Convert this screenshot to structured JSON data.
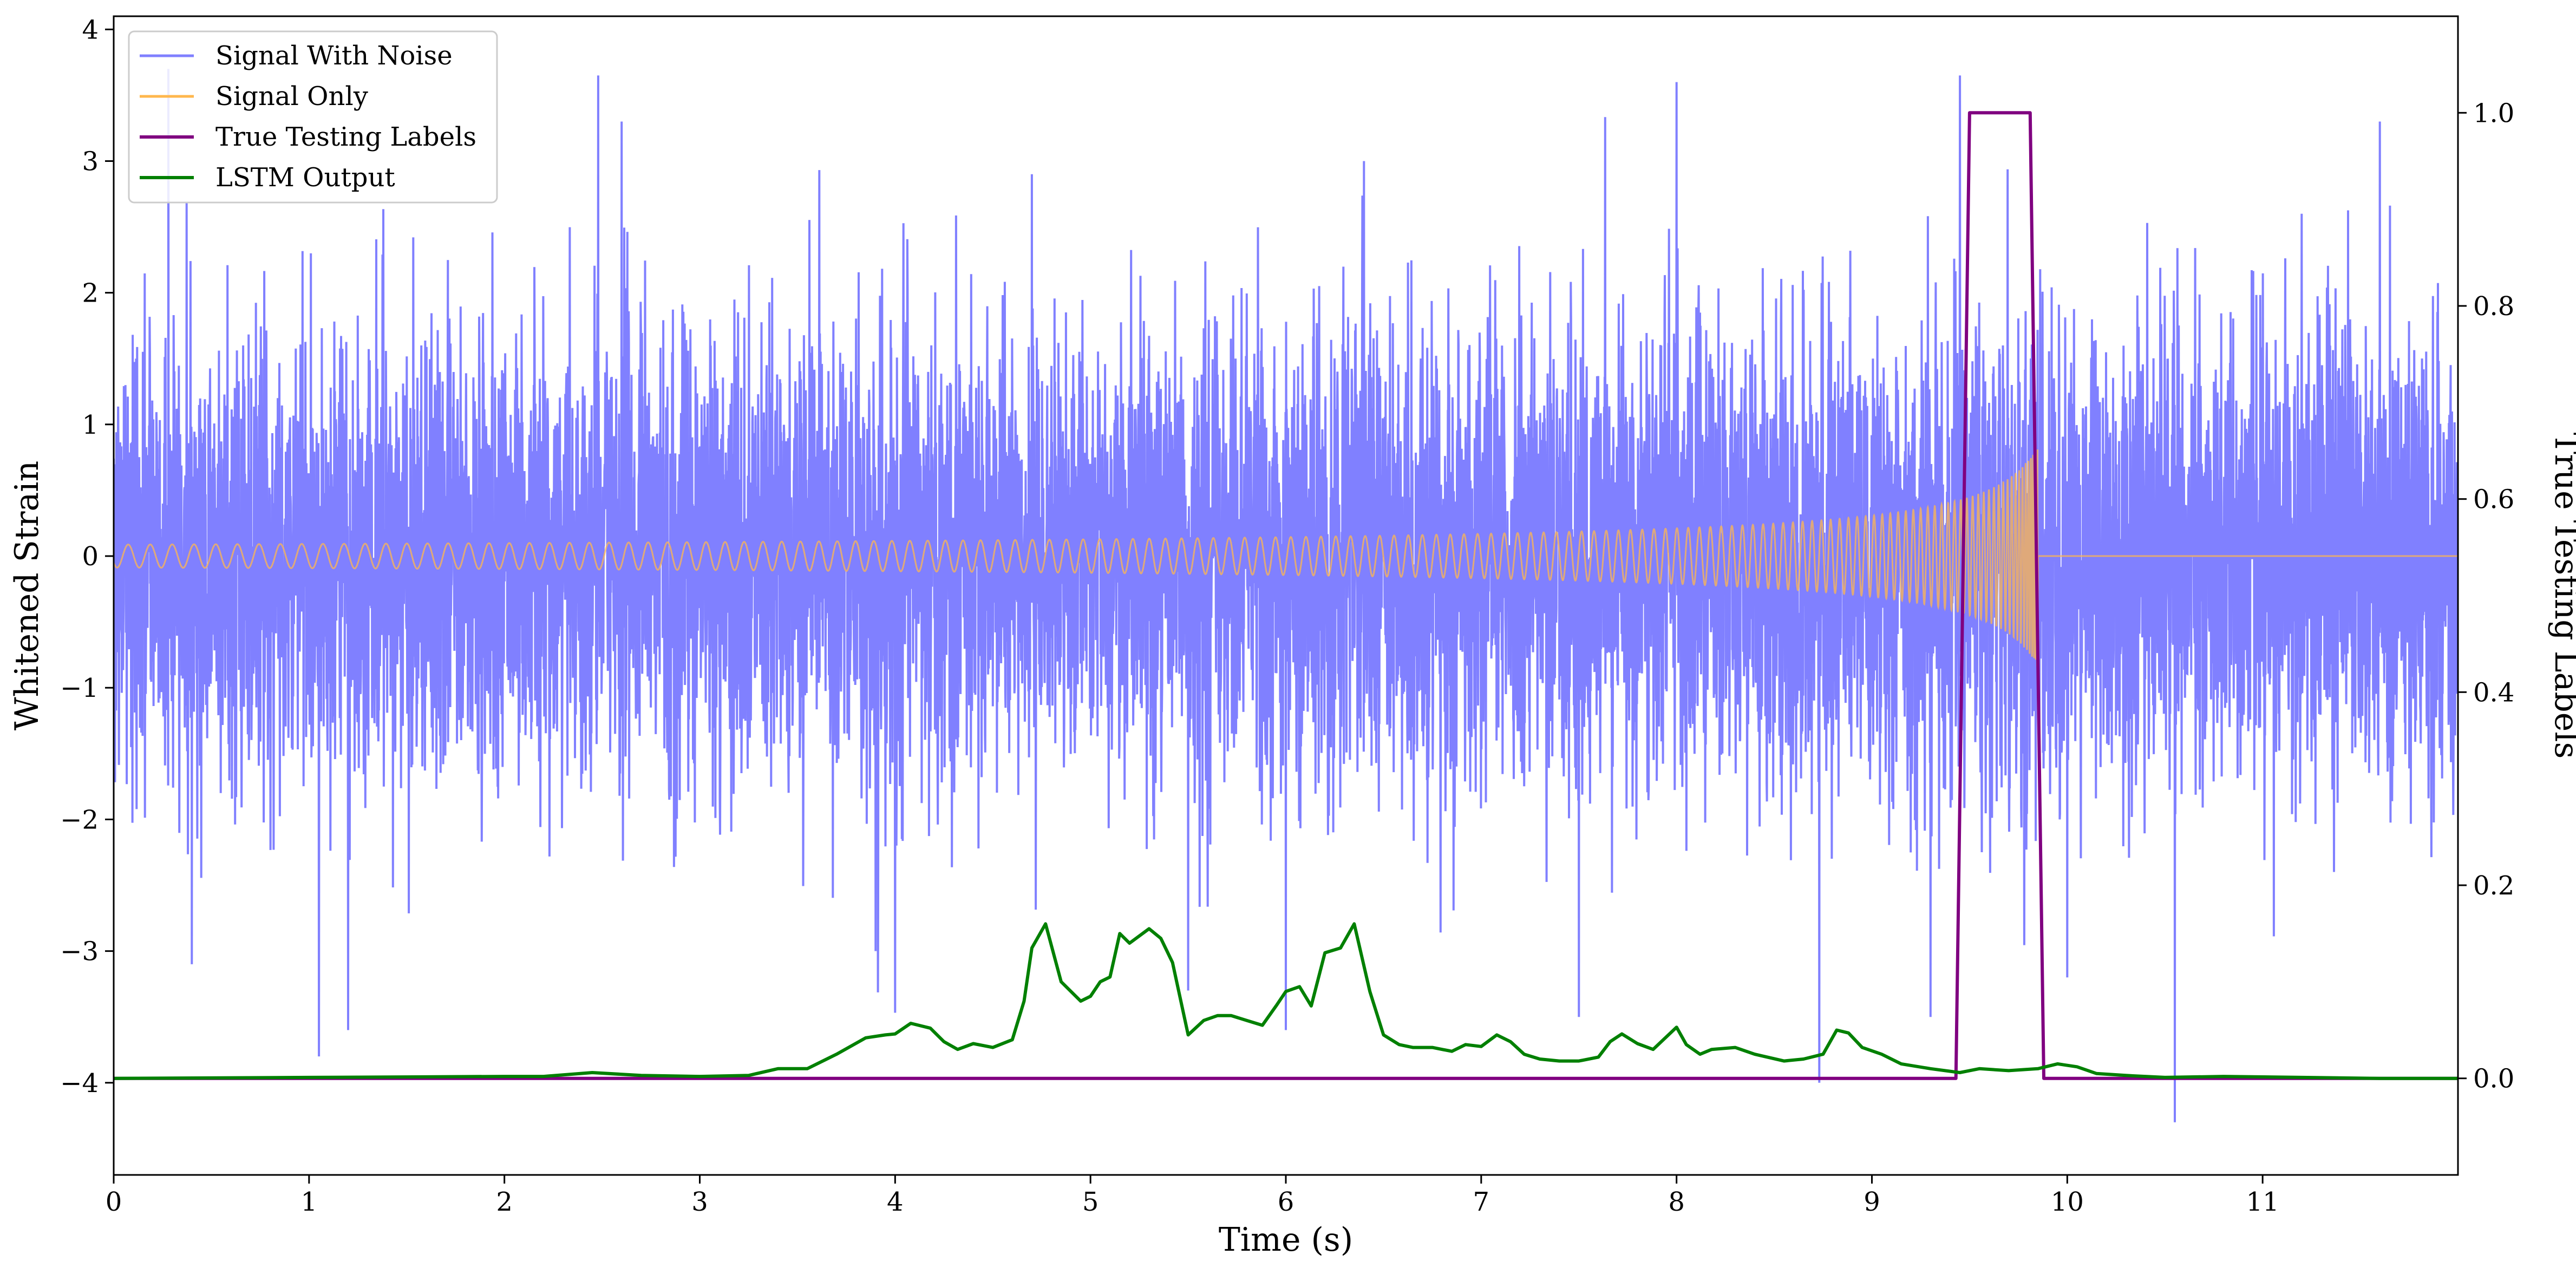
{
  "chart_data": {
    "type": "line",
    "title": "",
    "xlabel": "Time (s)",
    "ylabel": "Whitened Strain",
    "y2label": "True Testing Labels",
    "xlim": [
      0,
      12
    ],
    "ylim": [
      -4.7,
      4.1
    ],
    "y2lim": [
      -0.1,
      1.1
    ],
    "x_ticks": [
      0,
      1,
      2,
      3,
      4,
      5,
      6,
      7,
      8,
      9,
      10,
      11
    ],
    "y_ticks": [
      -4,
      -3,
      -2,
      -1,
      0,
      1,
      2,
      3,
      4
    ],
    "y2_ticks": [
      0.0,
      0.2,
      0.4,
      0.6,
      0.8,
      1.0
    ],
    "y2_tick_labels": [
      "0.0",
      "0.2",
      "0.4",
      "0.6",
      "0.8",
      "1.0"
    ],
    "legend_position": "upper-left",
    "grid": false,
    "series": [
      {
        "name": "Signal With Noise",
        "axis": "left",
        "color": "#8080ff",
        "description": "dense noisy strain, approx. standard deviation 1",
        "spike_peaks": {
          "x": [
            0.28,
            0.4,
            1.05,
            1.2,
            2.48,
            2.6,
            3.9,
            4.7,
            5.5,
            6.0,
            6.4,
            7.5,
            8.0,
            8.73,
            9.3,
            9.45,
            10.0,
            10.55,
            11.2,
            11.6
          ],
          "y": [
            3.7,
            -3.1,
            -3.8,
            -3.6,
            3.65,
            3.3,
            -3.0,
            2.9,
            -3.3,
            -3.6,
            3.0,
            -3.5,
            3.6,
            -4.0,
            -3.5,
            3.65,
            -3.2,
            -4.3,
            2.6,
            3.3
          ]
        }
      },
      {
        "name": "Signal Only",
        "axis": "left",
        "color": "#ffb74d",
        "description": "inspiral chirp growing in amplitude and frequency, ending near 9.85 s",
        "chirp_end": 9.85,
        "amplitude_max": 0.85
      },
      {
        "name": "True Testing Labels",
        "axis": "right",
        "color": "#800080",
        "x": [
          0,
          9.43,
          9.5,
          9.81,
          9.88,
          12
        ],
        "y": [
          0,
          0,
          1,
          1,
          0,
          0
        ]
      },
      {
        "name": "LSTM Output",
        "axis": "right",
        "color": "#008000",
        "x": [
          0,
          1.0,
          2.0,
          2.2,
          2.45,
          2.7,
          3.0,
          3.25,
          3.4,
          3.55,
          3.7,
          3.85,
          3.95,
          4.0,
          4.08,
          4.18,
          4.25,
          4.32,
          4.4,
          4.5,
          4.6,
          4.66,
          4.7,
          4.77,
          4.85,
          4.95,
          5.0,
          5.05,
          5.1,
          5.15,
          5.2,
          5.3,
          5.36,
          5.42,
          5.5,
          5.58,
          5.65,
          5.72,
          5.8,
          5.88,
          5.95,
          6.0,
          6.07,
          6.13,
          6.2,
          6.28,
          6.35,
          6.43,
          6.5,
          6.58,
          6.65,
          6.75,
          6.85,
          6.92,
          7.0,
          7.08,
          7.15,
          7.22,
          7.3,
          7.4,
          7.5,
          7.6,
          7.66,
          7.72,
          7.8,
          7.88,
          8.0,
          8.05,
          8.12,
          8.18,
          8.3,
          8.4,
          8.55,
          8.65,
          8.75,
          8.82,
          8.88,
          8.95,
          9.05,
          9.15,
          9.3,
          9.45,
          9.55,
          9.7,
          9.85,
          9.95,
          10.05,
          10.15,
          10.3,
          10.5,
          10.8,
          11.2,
          11.6,
          12.0
        ],
        "y": [
          0.0,
          0.001,
          0.002,
          0.002,
          0.006,
          0.003,
          0.002,
          0.003,
          0.01,
          0.01,
          0.025,
          0.042,
          0.045,
          0.046,
          0.057,
          0.052,
          0.038,
          0.03,
          0.036,
          0.032,
          0.04,
          0.08,
          0.135,
          0.16,
          0.1,
          0.08,
          0.085,
          0.1,
          0.105,
          0.15,
          0.14,
          0.155,
          0.145,
          0.12,
          0.045,
          0.06,
          0.065,
          0.065,
          0.06,
          0.055,
          0.075,
          0.09,
          0.095,
          0.075,
          0.13,
          0.135,
          0.16,
          0.09,
          0.045,
          0.035,
          0.032,
          0.032,
          0.028,
          0.035,
          0.033,
          0.045,
          0.038,
          0.025,
          0.02,
          0.018,
          0.018,
          0.022,
          0.038,
          0.046,
          0.036,
          0.03,
          0.053,
          0.035,
          0.025,
          0.03,
          0.032,
          0.025,
          0.018,
          0.02,
          0.025,
          0.05,
          0.047,
          0.032,
          0.025,
          0.015,
          0.01,
          0.006,
          0.01,
          0.008,
          0.01,
          0.015,
          0.012,
          0.005,
          0.003,
          0.001,
          0.002,
          0.001,
          0.0,
          0.0
        ]
      }
    ]
  }
}
